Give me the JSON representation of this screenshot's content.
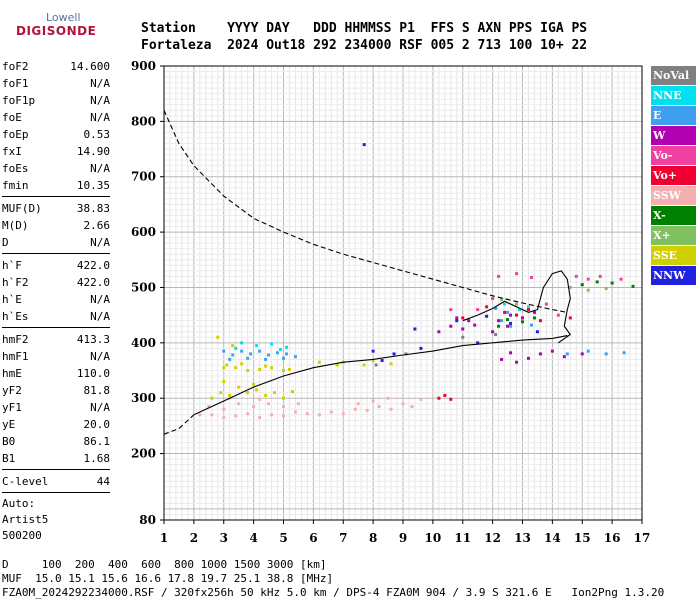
{
  "logo": {
    "line1": "Lowell",
    "line2": "DIGISONDE"
  },
  "header": {
    "line1": "Station    YYYY DAY   DDD HHMMSS P1  FFS S AXN PPS IGA PS",
    "line2": "Fortaleza  2024 Out18 292 234000 RSF 005 2 713 100 10+ 22"
  },
  "params": [
    {
      "label": "foF2",
      "value": "14.600"
    },
    {
      "label": "foF1",
      "value": "N/A"
    },
    {
      "label": "foF1p",
      "value": "N/A"
    },
    {
      "label": "foE",
      "value": "N/A"
    },
    {
      "label": "foEp",
      "value": "0.53"
    },
    {
      "label": "fxI",
      "value": "14.90"
    },
    {
      "label": "foEs",
      "value": "N/A"
    },
    {
      "label": "fmin",
      "value": "10.35"
    },
    {
      "divider": true
    },
    {
      "label": "MUF(D)",
      "value": "38.83"
    },
    {
      "label": "M(D)",
      "value": "2.66"
    },
    {
      "label": "D",
      "value": "N/A"
    },
    {
      "divider": true
    },
    {
      "label": "h`F",
      "value": "422.0"
    },
    {
      "label": "h`F2",
      "value": "422.0"
    },
    {
      "label": "h`E",
      "value": "N/A"
    },
    {
      "label": "h`Es",
      "value": "N/A"
    },
    {
      "divider": true
    },
    {
      "label": "hmF2",
      "value": "413.3"
    },
    {
      "label": "hmF1",
      "value": "N/A"
    },
    {
      "label": "hmE",
      "value": "110.0"
    },
    {
      "label": "yF2",
      "value": "81.8"
    },
    {
      "label": "yF1",
      "value": "N/A"
    },
    {
      "label": "yE",
      "value": "20.0"
    },
    {
      "label": "B0",
      "value": "86.1"
    },
    {
      "label": "B1",
      "value": "1.68"
    },
    {
      "divider": true
    },
    {
      "label": "C-level",
      "value": "44"
    },
    {
      "divider": true
    }
  ],
  "auto": [
    "Auto:",
    "Artist5",
    "500200"
  ],
  "legend": [
    {
      "label": "NoVal",
      "color": "#808080"
    },
    {
      "label": "NNE",
      "color": "#00e0f0"
    },
    {
      "label": "E",
      "color": "#40a0f0"
    },
    {
      "label": "W",
      "color": "#b000b0"
    },
    {
      "label": "Vo-",
      "color": "#f040a0"
    },
    {
      "label": "Vo+",
      "color": "#f00030"
    },
    {
      "label": "SSW",
      "color": "#f4b0b0"
    },
    {
      "label": "X-",
      "color": "#008000"
    },
    {
      "label": "X+",
      "color": "#80c060"
    },
    {
      "label": "SSE",
      "color": "#d0d000"
    },
    {
      "label": "NNW",
      "color": "#2020e0"
    }
  ],
  "footer": {
    "line1": "D     100  200  400  600  800 1000 1500 3000 [km]",
    "line2": "MUF  15.0 15.1 15.6 16.6 17.8 19.7 25.1 38.8 [MHz]",
    "line3": "FZA0M_2024292234000.RSF / 320fx256h 50 kHz 5.0 km / DPS-4 FZA0M 904 / 3.9 S 321.6 E   Ion2Png 1.3.20"
  },
  "chart_data": {
    "type": "scatter",
    "xlim": [
      1,
      17
    ],
    "ylim": [
      80,
      900
    ],
    "x_ticks": [
      1,
      2,
      3,
      4,
      5,
      6,
      7,
      8,
      9,
      10,
      11,
      12,
      13,
      14,
      15,
      16,
      17
    ],
    "y_ticks": [
      80,
      200,
      300,
      400,
      500,
      600,
      700,
      800,
      900
    ],
    "grid": true,
    "echo_clusters": [
      {
        "color": "#f4b0b0",
        "points": [
          [
            2.2,
            270
          ],
          [
            2.6,
            270
          ],
          [
            3.0,
            265
          ],
          [
            3.4,
            268
          ],
          [
            3.8,
            272
          ],
          [
            4.2,
            265
          ],
          [
            4.6,
            270
          ],
          [
            5.0,
            268
          ],
          [
            5.4,
            275
          ],
          [
            5.8,
            272
          ],
          [
            6.2,
            270
          ],
          [
            6.6,
            275
          ],
          [
            7.0,
            272
          ],
          [
            7.4,
            280
          ],
          [
            7.8,
            278
          ],
          [
            8.2,
            285
          ],
          [
            8.6,
            280
          ],
          [
            9.0,
            290
          ],
          [
            9.3,
            285
          ],
          [
            9.6,
            298
          ],
          [
            2.5,
            285
          ],
          [
            3.0,
            280
          ],
          [
            3.5,
            290
          ],
          [
            4.0,
            285
          ],
          [
            4.5,
            290
          ],
          [
            5.0,
            285
          ],
          [
            5.5,
            290
          ],
          [
            7.5,
            290
          ],
          [
            8.0,
            295
          ],
          [
            8.5,
            300
          ],
          [
            3.2,
            300
          ],
          [
            4.2,
            298
          ]
        ]
      },
      {
        "color": "#d0d000",
        "points": [
          [
            2.6,
            300
          ],
          [
            2.9,
            310
          ],
          [
            3.2,
            305
          ],
          [
            3.5,
            320
          ],
          [
            3.8,
            310
          ],
          [
            4.1,
            315
          ],
          [
            4.4,
            305
          ],
          [
            4.7,
            310
          ],
          [
            5.0,
            300
          ],
          [
            5.3,
            312
          ],
          [
            3.0,
            355
          ],
          [
            3.4,
            355
          ],
          [
            3.8,
            350
          ],
          [
            4.2,
            352
          ],
          [
            4.6,
            355
          ],
          [
            5.0,
            350
          ],
          [
            5.2,
            352
          ],
          [
            3.1,
            360
          ],
          [
            3.6,
            362
          ],
          [
            4.4,
            358
          ],
          [
            2.8,
            410
          ],
          [
            3.3,
            395
          ],
          [
            6.8,
            360
          ],
          [
            7.0,
            365
          ],
          [
            7.7,
            360
          ],
          [
            8.0,
            368
          ],
          [
            8.6,
            362
          ],
          [
            6.2,
            365
          ],
          [
            3.0,
            330
          ],
          [
            4.0,
            325
          ]
        ]
      },
      {
        "color": "#40a0f0",
        "points": [
          [
            3.0,
            385
          ],
          [
            3.3,
            378
          ],
          [
            3.6,
            385
          ],
          [
            3.9,
            380
          ],
          [
            4.2,
            385
          ],
          [
            4.5,
            378
          ],
          [
            4.8,
            382
          ],
          [
            5.1,
            380
          ],
          [
            5.4,
            375
          ],
          [
            3.2,
            370
          ],
          [
            3.8,
            372
          ],
          [
            4.4,
            370
          ],
          [
            5.0,
            372
          ],
          [
            12.3,
            440
          ],
          [
            12.6,
            430
          ],
          [
            13.0,
            445
          ],
          [
            13.3,
            432
          ],
          [
            14.5,
            380
          ],
          [
            15.2,
            385
          ],
          [
            15.8,
            380
          ],
          [
            16.4,
            382
          ],
          [
            12.1,
            462
          ],
          [
            12.5,
            455
          ]
        ]
      },
      {
        "color": "#00e0f0",
        "points": [
          [
            3.6,
            400
          ],
          [
            4.1,
            395
          ],
          [
            4.6,
            398
          ],
          [
            5.1,
            392
          ],
          [
            3.4,
            390
          ],
          [
            4.9,
            388
          ],
          [
            12.4,
            470
          ],
          [
            12.9,
            460
          ],
          [
            13.2,
            465
          ]
        ]
      },
      {
        "color": "#b000b0",
        "points": [
          [
            10.2,
            420
          ],
          [
            10.6,
            430
          ],
          [
            11.0,
            425
          ],
          [
            11.4,
            432
          ],
          [
            10.8,
            445
          ],
          [
            11.2,
            440
          ],
          [
            12.2,
            440
          ],
          [
            12.6,
            450
          ],
          [
            13.0,
            445
          ],
          [
            13.4,
            455
          ],
          [
            12.0,
            420
          ],
          [
            12.5,
            430
          ],
          [
            12.3,
            370
          ],
          [
            12.8,
            365
          ],
          [
            13.2,
            372
          ],
          [
            13.6,
            380
          ],
          [
            14.0,
            385
          ],
          [
            14.4,
            375
          ],
          [
            15.0,
            380
          ],
          [
            12.6,
            382
          ]
        ]
      },
      {
        "color": "#f040a0",
        "points": [
          [
            12.2,
            520
          ],
          [
            12.8,
            525
          ],
          [
            13.3,
            518
          ],
          [
            14.8,
            520
          ],
          [
            15.2,
            515
          ],
          [
            15.6,
            520
          ],
          [
            16.3,
            515
          ],
          [
            12.0,
            480
          ],
          [
            11.5,
            460
          ],
          [
            13.8,
            470
          ],
          [
            14.2,
            450
          ],
          [
            10.6,
            460
          ]
        ]
      },
      {
        "color": "#f00030",
        "points": [
          [
            10.2,
            300
          ],
          [
            10.4,
            305
          ],
          [
            10.6,
            298
          ],
          [
            12.4,
            455
          ],
          [
            12.8,
            450
          ],
          [
            13.2,
            460
          ],
          [
            11.0,
            445
          ],
          [
            13.6,
            440
          ],
          [
            14.6,
            445
          ],
          [
            11.8,
            465
          ]
        ]
      },
      {
        "color": "#008000",
        "points": [
          [
            12.5,
            442
          ],
          [
            13.0,
            438
          ],
          [
            13.4,
            445
          ],
          [
            12.2,
            430
          ],
          [
            15.0,
            505
          ],
          [
            15.5,
            510
          ],
          [
            16.0,
            508
          ],
          [
            16.7,
            502
          ]
        ]
      },
      {
        "color": "#80c060",
        "points": [
          [
            12.3,
            478
          ],
          [
            12.8,
            470
          ],
          [
            14.6,
            500
          ],
          [
            15.2,
            495
          ],
          [
            15.8,
            498
          ]
        ]
      },
      {
        "color": "#2020e0",
        "points": [
          [
            7.7,
            758
          ],
          [
            8.0,
            385
          ],
          [
            8.3,
            368
          ],
          [
            9.6,
            390
          ],
          [
            9.4,
            425
          ],
          [
            10.8,
            440
          ],
          [
            11.8,
            448
          ],
          [
            12.6,
            435
          ],
          [
            13.5,
            420
          ],
          [
            11.5,
            400
          ],
          [
            8.7,
            380
          ]
        ]
      },
      {
        "color": "#808080",
        "points": [
          [
            8.1,
            360
          ],
          [
            9.1,
            380
          ],
          [
            11.0,
            410
          ],
          [
            12.1,
            415
          ]
        ]
      }
    ],
    "lines": [
      {
        "style": "dashed",
        "points": [
          [
            1.0,
            820
          ],
          [
            1.5,
            760
          ],
          [
            2.0,
            720
          ],
          [
            3.0,
            665
          ],
          [
            4.0,
            625
          ],
          [
            5.0,
            600
          ],
          [
            6.0,
            578
          ],
          [
            7.0,
            560
          ],
          [
            8.0,
            545
          ],
          [
            9.0,
            530
          ],
          [
            10.0,
            515
          ],
          [
            11.0,
            500
          ],
          [
            12.0,
            485
          ],
          [
            13.0,
            472
          ],
          [
            14.0,
            460
          ],
          [
            14.5,
            455
          ]
        ]
      },
      {
        "style": "solid",
        "points": [
          [
            2.0,
            270
          ],
          [
            3.0,
            295
          ],
          [
            4.0,
            320
          ],
          [
            5.0,
            340
          ],
          [
            6.0,
            355
          ],
          [
            7.0,
            365
          ],
          [
            8.0,
            370
          ],
          [
            9.0,
            378
          ],
          [
            10.0,
            385
          ],
          [
            11.0,
            395
          ],
          [
            12.0,
            400
          ],
          [
            13.0,
            405
          ],
          [
            14.0,
            408
          ],
          [
            14.5,
            413
          ]
        ]
      },
      {
        "style": "dashed",
        "points": [
          [
            1.0,
            235
          ],
          [
            1.5,
            245
          ],
          [
            2.0,
            270
          ]
        ]
      },
      {
        "style": "solid",
        "points": [
          [
            11.0,
            440
          ],
          [
            11.5,
            450
          ],
          [
            12.0,
            462
          ],
          [
            12.4,
            475
          ],
          [
            12.8,
            465
          ],
          [
            13.2,
            455
          ],
          [
            13.5,
            460
          ],
          [
            13.7,
            500
          ],
          [
            14.0,
            525
          ],
          [
            14.3,
            530
          ],
          [
            14.5,
            515
          ],
          [
            14.6,
            480
          ],
          [
            14.5,
            460
          ],
          [
            14.4,
            430
          ],
          [
            14.6,
            415
          ],
          [
            14.2,
            400
          ]
        ]
      }
    ]
  }
}
